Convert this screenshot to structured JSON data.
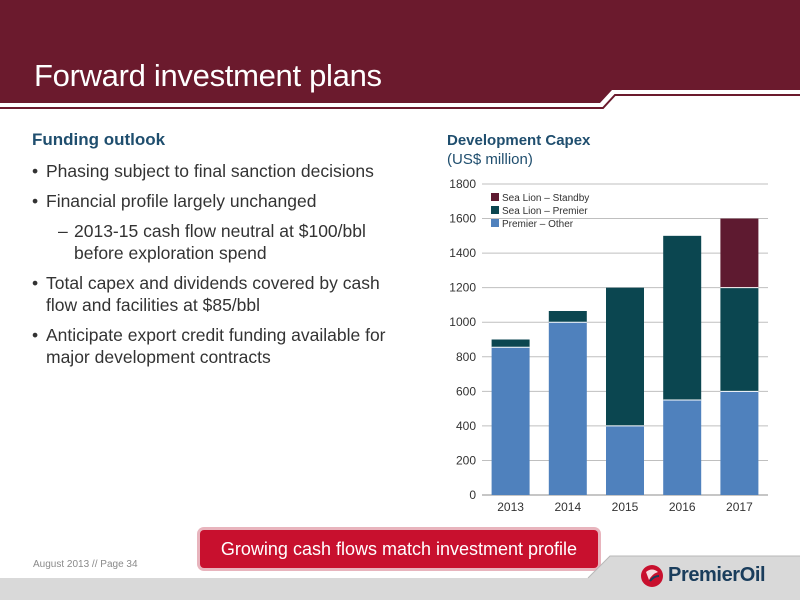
{
  "slide": {
    "title": "Forward investment plans",
    "subhead": "Funding outlook",
    "bullets": [
      {
        "text": "Phasing subject to final sanction decisions",
        "level": 1
      },
      {
        "text": "Financial profile largely unchanged",
        "level": 1
      },
      {
        "text": "2013-15 cash flow neutral at $100/bbl before exploration spend",
        "level": 2
      },
      {
        "text": "Total capex and dividends covered by cash flow and facilities at $85/bbl",
        "level": 1
      },
      {
        "text": "Anticipate export credit funding available for major development contracts",
        "level": 1
      }
    ],
    "callout": "Growing cash flows match investment profile",
    "footer": "August 2013 // Page 34",
    "logo_text": "PremierOil"
  },
  "colors": {
    "header": "#6b1a2d",
    "premier_other": "#4f81bd",
    "sea_lion_premier": "#0b4650",
    "sea_lion_standby": "#5e1a30",
    "callout": "#c8102e"
  },
  "chart_data": {
    "type": "bar",
    "stacked": true,
    "title": "Development Capex",
    "subtitle": "(US$ million)",
    "categories": [
      "2013",
      "2014",
      "2015",
      "2016",
      "2017"
    ],
    "series": [
      {
        "name": "Premier – Other",
        "values": [
          855,
          1000,
          400,
          550,
          600
        ],
        "color": "#4f81bd"
      },
      {
        "name": "Sea Lion – Premier",
        "values": [
          45,
          65,
          800,
          950,
          600
        ],
        "color": "#0b4650"
      },
      {
        "name": "Sea Lion – Standby",
        "values": [
          0,
          0,
          0,
          0,
          400
        ],
        "color": "#5e1a30"
      }
    ],
    "ylim": [
      0,
      1800
    ],
    "yticks": [
      0,
      200,
      400,
      600,
      800,
      1000,
      1200,
      1400,
      1600,
      1800
    ],
    "grid": true,
    "legend_position": "top-left",
    "legend_order": [
      "Sea Lion – Standby",
      "Sea Lion – Premier",
      "Premier – Other"
    ]
  }
}
